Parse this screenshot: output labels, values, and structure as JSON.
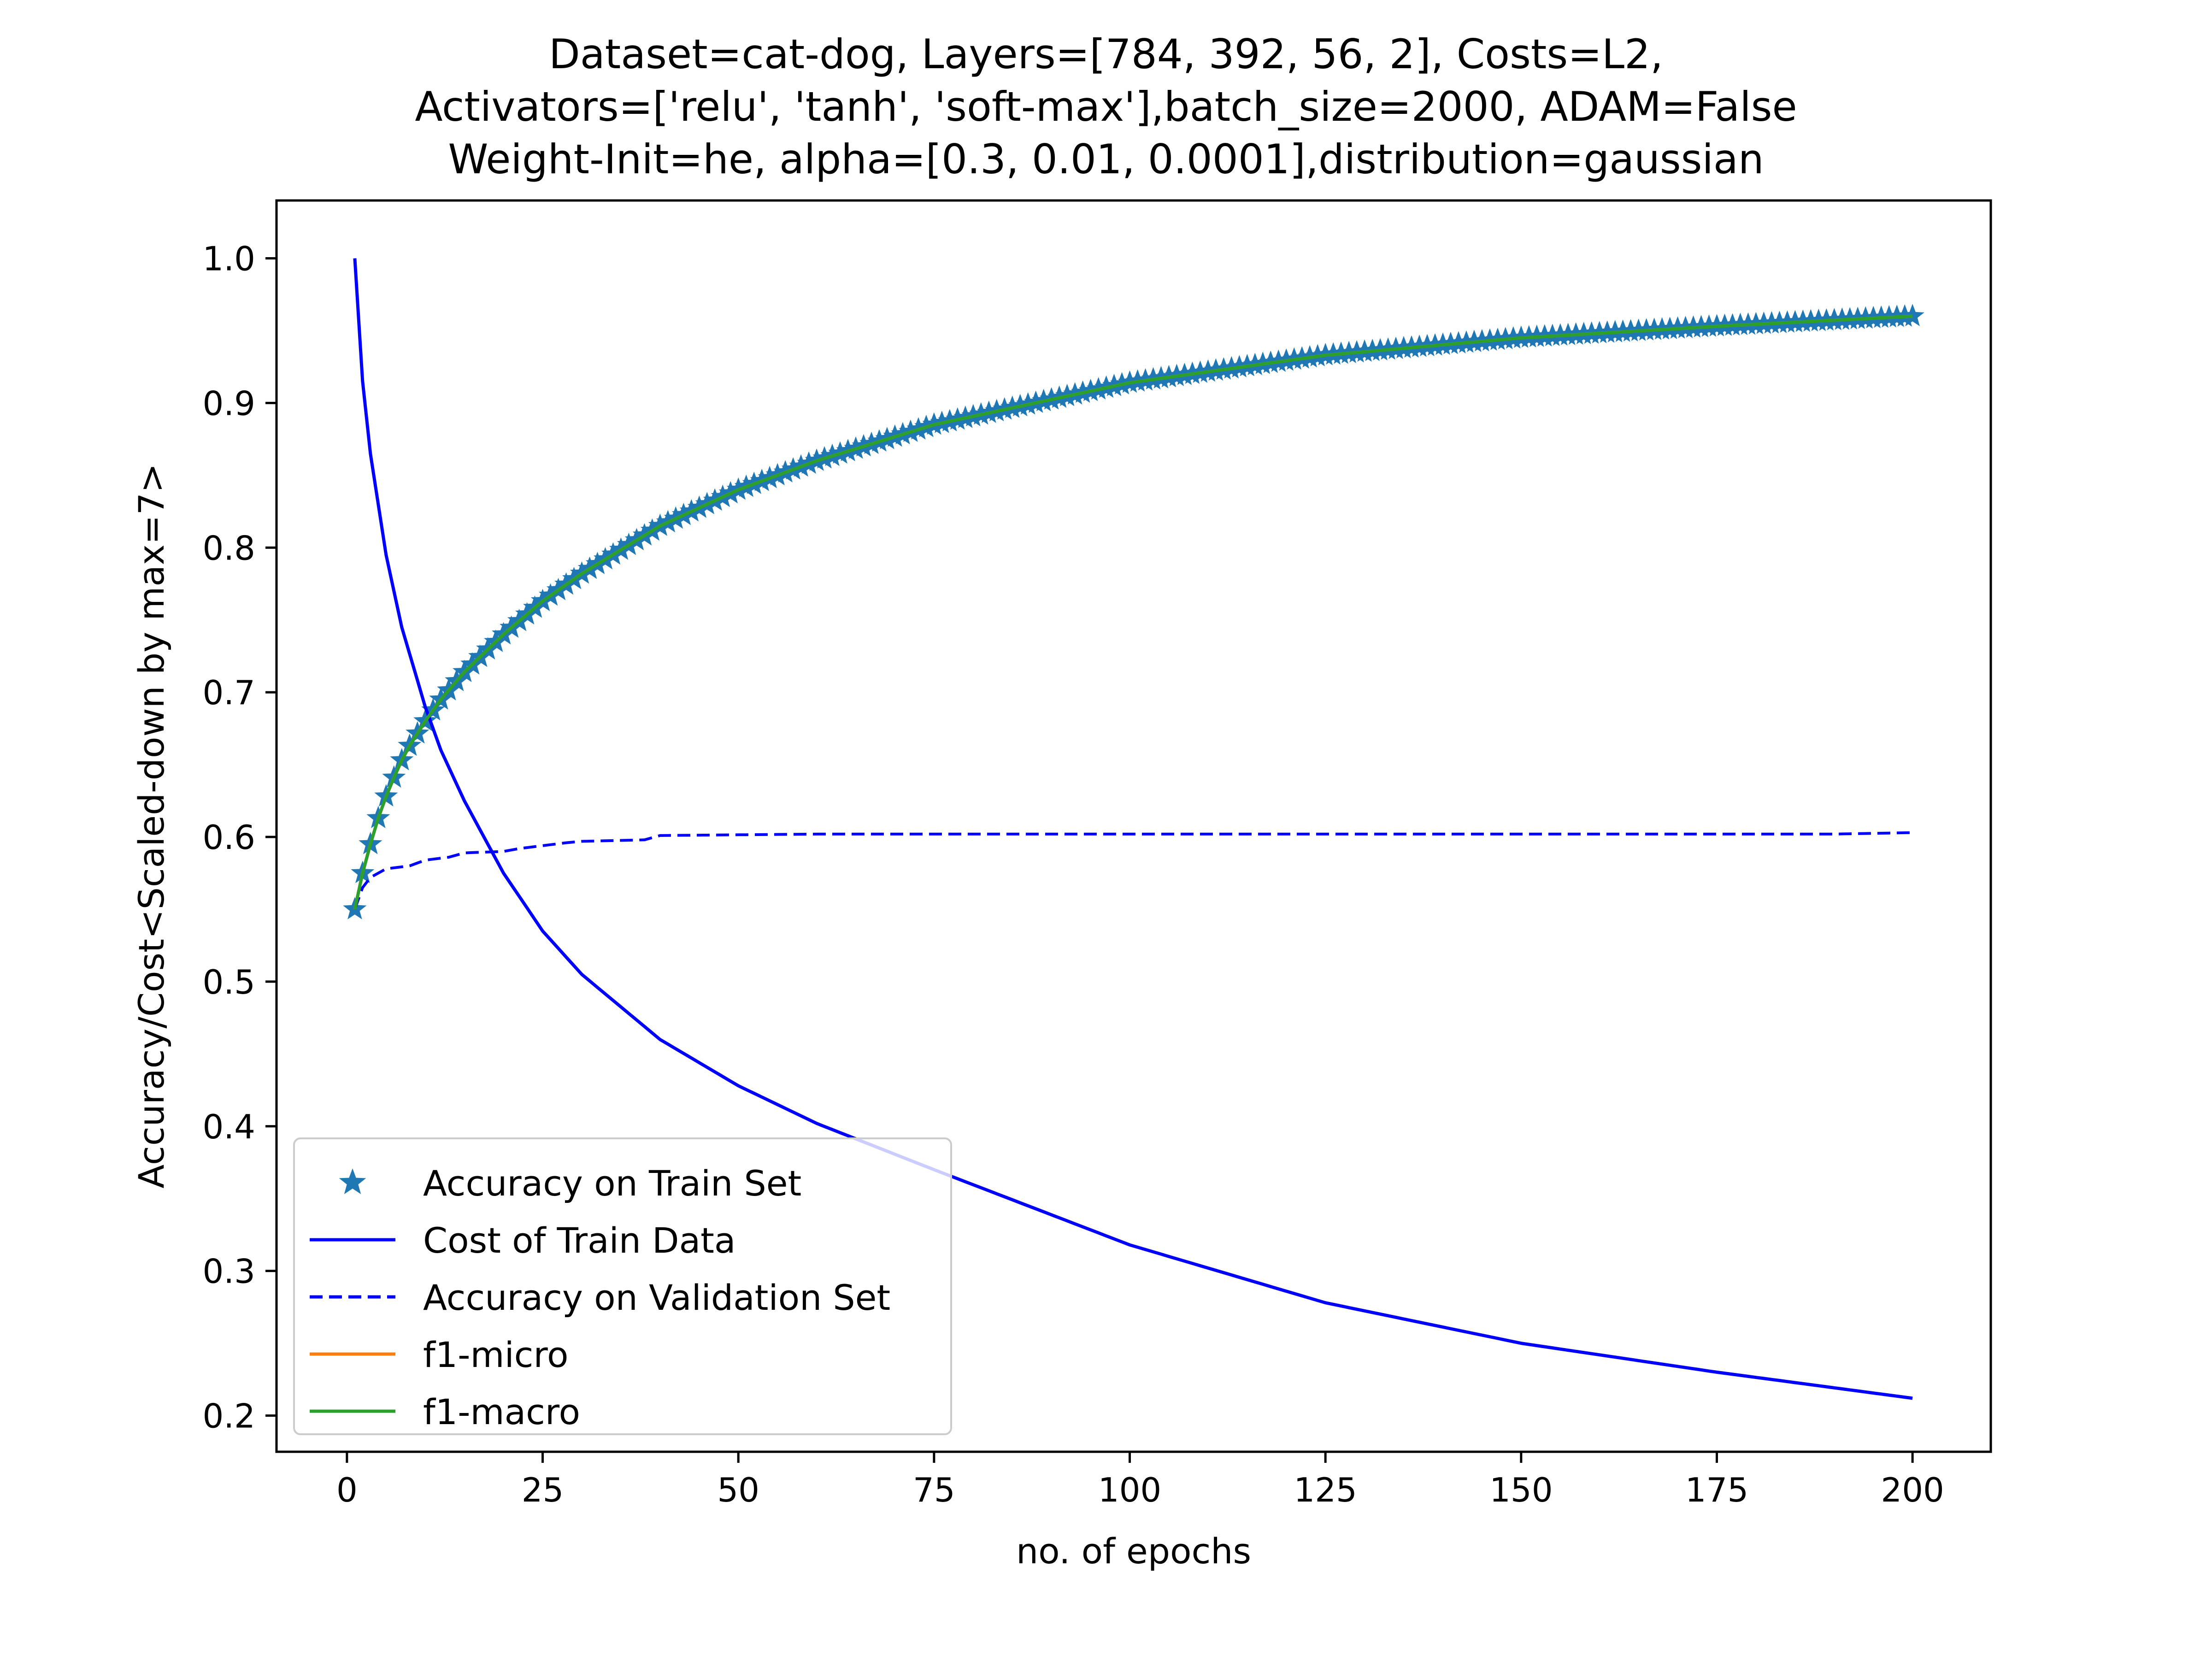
{
  "chart_data": {
    "type": "line",
    "title_lines": [
      "Dataset=cat-dog, Layers=[784, 392, 56, 2], Costs=L2,",
      "Activators=['relu', 'tanh', 'soft-max'],batch_size=2000, ADAM=False",
      "Weight-Init=he, alpha=[0.3, 0.01, 0.0001],distribution=gaussian"
    ],
    "xlabel": "no. of epochs",
    "ylabel": "Accuracy/Cost<Scaled-down by max=7>",
    "xlim": [
      -9,
      210
    ],
    "ylim": [
      0.175,
      1.04
    ],
    "xticks": [
      0,
      25,
      50,
      75,
      100,
      125,
      150,
      175,
      200
    ],
    "yticks": [
      0.2,
      0.3,
      0.4,
      0.5,
      0.6,
      0.7,
      0.8,
      0.9,
      1.0
    ],
    "ytick_labels": [
      "0.2",
      "0.3",
      "0.4",
      "0.5",
      "0.6",
      "0.7",
      "0.8",
      "0.9",
      "1.0"
    ],
    "grid": false,
    "legend_position": "lower-left",
    "series": [
      {
        "name": "Accuracy on Train Set",
        "color": "#1f77b4",
        "style": "marker-star",
        "x": [
          1,
          2,
          3,
          4,
          5,
          6,
          7,
          8,
          10,
          12,
          15,
          20,
          25,
          30,
          40,
          50,
          60,
          75,
          100,
          125,
          150,
          175,
          200
        ],
        "y": [
          0.55,
          0.575,
          0.595,
          0.613,
          0.628,
          0.641,
          0.653,
          0.663,
          0.68,
          0.695,
          0.714,
          0.74,
          0.763,
          0.782,
          0.815,
          0.84,
          0.86,
          0.885,
          0.914,
          0.933,
          0.945,
          0.953,
          0.96
        ]
      },
      {
        "name": "Cost of Train Data",
        "color": "#0000ff",
        "style": "solid",
        "x": [
          1,
          2,
          3,
          5,
          7,
          10,
          12,
          15,
          20,
          25,
          30,
          40,
          50,
          60,
          75,
          100,
          125,
          150,
          175,
          200
        ],
        "y": [
          1.0,
          0.915,
          0.865,
          0.795,
          0.745,
          0.69,
          0.66,
          0.625,
          0.575,
          0.535,
          0.505,
          0.46,
          0.428,
          0.402,
          0.37,
          0.318,
          0.278,
          0.25,
          0.23,
          0.212
        ]
      },
      {
        "name": "Accuracy on Validation Set",
        "color": "#0000ff",
        "style": "dashed",
        "x": [
          1,
          2,
          3,
          5,
          8,
          10,
          13,
          15,
          20,
          22,
          25,
          28,
          30,
          38,
          40,
          60,
          100,
          150,
          190,
          200
        ],
        "y": [
          0.55,
          0.565,
          0.572,
          0.578,
          0.58,
          0.584,
          0.586,
          0.589,
          0.59,
          0.592,
          0.594,
          0.596,
          0.597,
          0.598,
          0.601,
          0.602,
          0.602,
          0.602,
          0.602,
          0.603
        ]
      },
      {
        "name": "f1-micro",
        "color": "#ff7f0e",
        "style": "solid",
        "x": [
          1,
          2,
          3,
          4,
          5,
          6,
          7,
          8,
          10,
          12,
          15,
          20,
          25,
          30,
          40,
          50,
          60,
          75,
          100,
          125,
          150,
          175,
          200
        ],
        "y": [
          0.55,
          0.575,
          0.595,
          0.613,
          0.628,
          0.641,
          0.653,
          0.663,
          0.68,
          0.695,
          0.714,
          0.74,
          0.763,
          0.782,
          0.815,
          0.84,
          0.86,
          0.885,
          0.914,
          0.933,
          0.945,
          0.953,
          0.96
        ]
      },
      {
        "name": "f1-macro",
        "color": "#2ca02c",
        "style": "solid",
        "x": [
          1,
          2,
          3,
          4,
          5,
          6,
          7,
          8,
          10,
          12,
          15,
          20,
          25,
          30,
          40,
          50,
          60,
          75,
          100,
          125,
          150,
          175,
          200
        ],
        "y": [
          0.55,
          0.575,
          0.595,
          0.613,
          0.628,
          0.641,
          0.653,
          0.663,
          0.68,
          0.695,
          0.714,
          0.74,
          0.763,
          0.782,
          0.815,
          0.84,
          0.86,
          0.885,
          0.914,
          0.933,
          0.945,
          0.953,
          0.96
        ]
      }
    ]
  }
}
